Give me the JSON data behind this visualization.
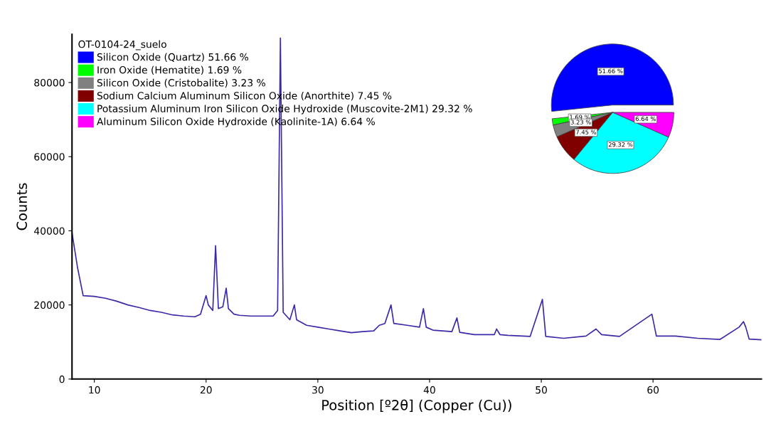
{
  "chart_data": [
    {
      "type": "line",
      "xlabel": "Position [º2θ] (Copper (Cu))",
      "ylabel": "Counts",
      "xlim": [
        8,
        69.7
      ],
      "xticks": [
        10,
        20,
        30,
        40,
        50,
        60
      ],
      "ylim": [
        0,
        93000
      ],
      "yticks": [
        0,
        20000,
        40000,
        60000,
        80000
      ],
      "grid": false,
      "marker": "none",
      "line_style": "solid",
      "series": [
        {
          "color": "#3a2aa8",
          "x": [
            8,
            8.5,
            9,
            10,
            11,
            12,
            13,
            14,
            15,
            16,
            17,
            18,
            19,
            19.5,
            20,
            20.2,
            20.6,
            20.85,
            21.1,
            21.5,
            21.8,
            22.0,
            22.5,
            23,
            24,
            25,
            26,
            26.4,
            26.65,
            26.9,
            27.5,
            27.9,
            28.1,
            29,
            30,
            31,
            32,
            33,
            34,
            35,
            35.5,
            36,
            36.55,
            36.8,
            38,
            39.1,
            39.45,
            39.7,
            40.3,
            42,
            42.45,
            42.7,
            44,
            45.8,
            46,
            46.3,
            47,
            49,
            50.1,
            50.4,
            52,
            54,
            54.9,
            55.4,
            57,
            59.9,
            60.3,
            62,
            64,
            66,
            67.7,
            68.1,
            68.3,
            68.6,
            69.7
          ],
          "values": [
            39500,
            30000,
            22500,
            22300,
            21800,
            21000,
            20000,
            19300,
            18500,
            18000,
            17300,
            17000,
            16800,
            17500,
            22500,
            20000,
            18500,
            36000,
            19000,
            19500,
            24500,
            19000,
            17500,
            17200,
            17000,
            17000,
            17000,
            18500,
            92000,
            18000,
            16000,
            20000,
            16000,
            14500,
            14000,
            13500,
            13000,
            12500,
            12800,
            13000,
            14500,
            15000,
            20000,
            15000,
            14500,
            14000,
            19000,
            14000,
            13200,
            12800,
            16500,
            12600,
            12000,
            12000,
            13500,
            12000,
            11800,
            11500,
            21500,
            11500,
            11000,
            11600,
            13500,
            12000,
            11500,
            17500,
            11600,
            11600,
            11000,
            10700,
            14000,
            15500,
            14000,
            10800,
            10600
          ]
        }
      ]
    },
    {
      "type": "pie",
      "legend_title": "OT-0104-24_suelo",
      "legend": "top left",
      "categories": [
        "Silicon Oxide (Quartz)",
        "Iron Oxide (Hematite)",
        "Silicon Oxide (Cristobalite)",
        "Sodium Calcium Aluminum Silicon Oxide (Anorthite)",
        "Potassium Aluminum Iron Silicon Oxide Hydroxide (Muscovite-2M1)",
        "Aluminum Silicon Oxide Hydroxide (Kaolinite-1A)"
      ],
      "values": [
        51.66,
        1.69,
        3.23,
        7.45,
        29.32,
        6.64
      ],
      "value_labels": [
        "51.66 %",
        "1.69 %",
        "3.23 %",
        "7.45 %",
        "29.32 %",
        "6.64 %"
      ],
      "colors": [
        "#0000ff",
        "#00ff00",
        "#808080",
        "#800000",
        "#00ffff",
        "#ff00ff"
      ]
    }
  ]
}
